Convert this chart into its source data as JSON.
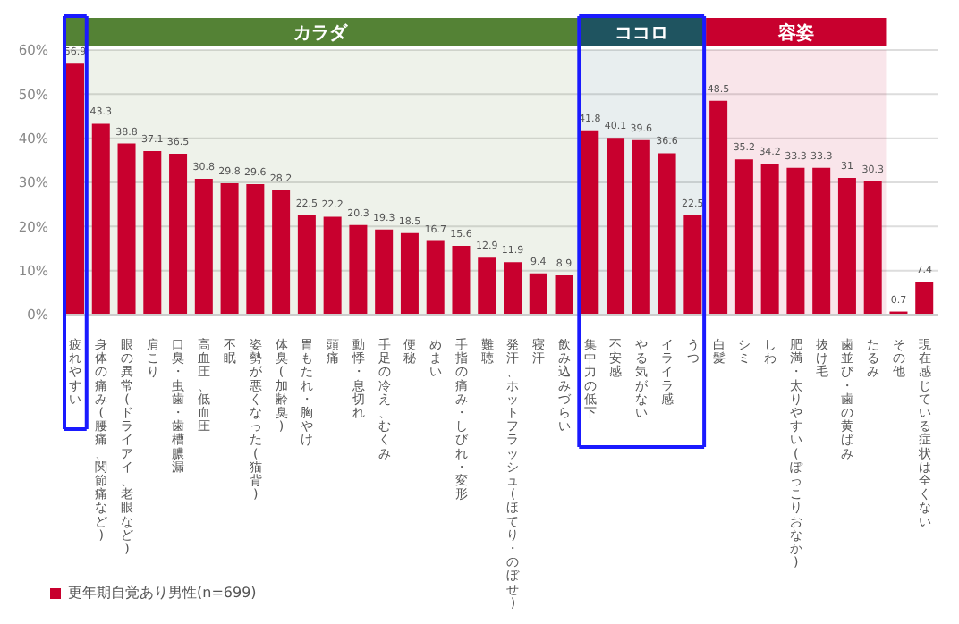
{
  "chart_data": {
    "type": "bar",
    "categories": [
      "疲れやすい",
      "身体の痛み(腰痛、関節痛など)",
      "眼の異常(ドライアイ、老眼など)",
      "肩こり",
      "口臭・虫歯・歯槽膿漏",
      "高血圧、低血圧",
      "不眠",
      "姿勢が悪くなった(猫背)",
      "体臭(加齢臭)",
      "胃もたれ・胸やけ",
      "頭痛",
      "動悸・息切れ",
      "手足の冷え、むくみ",
      "便秘",
      "めまい",
      "手指の痛み・しびれ・変形",
      "難聴",
      "発汗、ホットフラッシュ(ほてり・のぼせ)",
      "寝汗",
      "飲み込みづらい",
      "集中力の低下",
      "不安感",
      "やる気がない",
      "イライラ感",
      "うつ",
      "白髪",
      "シミ",
      "しわ",
      "肥満・太りやすい(ぽっこりおなか)",
      "抜け毛",
      "歯並び・歯の黄ばみ",
      "たるみ",
      "その他",
      "現在感じている症状は全くない"
    ],
    "series": [
      {
        "name": "更年期自覚あり男性(n=699)",
        "color": "#c8002e",
        "values": [
          56.9,
          43.3,
          38.8,
          37.1,
          36.5,
          30.8,
          29.8,
          29.6,
          28.2,
          22.5,
          22.2,
          20.3,
          19.3,
          18.5,
          16.7,
          15.6,
          12.9,
          11.9,
          9.4,
          8.9,
          41.8,
          40.1,
          39.6,
          36.6,
          22.5,
          48.5,
          35.2,
          34.2,
          33.3,
          33.3,
          31,
          30.3,
          0.7,
          7.4
        ]
      }
    ],
    "ylim": [
      0,
      60
    ],
    "yticks": [
      {
        "value": 0,
        "label": "0%"
      },
      {
        "value": 10,
        "label": "10%"
      },
      {
        "value": 20,
        "label": "20%"
      },
      {
        "value": 30,
        "label": "30%"
      },
      {
        "value": 40,
        "label": "40%"
      },
      {
        "value": 50,
        "label": "50%"
      },
      {
        "value": 60,
        "label": "60%"
      }
    ],
    "bands": [
      {
        "axis": "x",
        "from": "疲れやすい",
        "to": "飲み込みづらい",
        "label": "カラダ",
        "color": "#548235"
      },
      {
        "axis": "x",
        "from": "集中力の低下",
        "to": "うつ",
        "label": "ココロ",
        "color": "#1f5460"
      },
      {
        "axis": "x",
        "from": "白髪",
        "to": "たるみ",
        "label": "容姿",
        "color": "#c8002e"
      }
    ],
    "data_labels": true,
    "grid": "y",
    "legend": "bottom"
  }
}
